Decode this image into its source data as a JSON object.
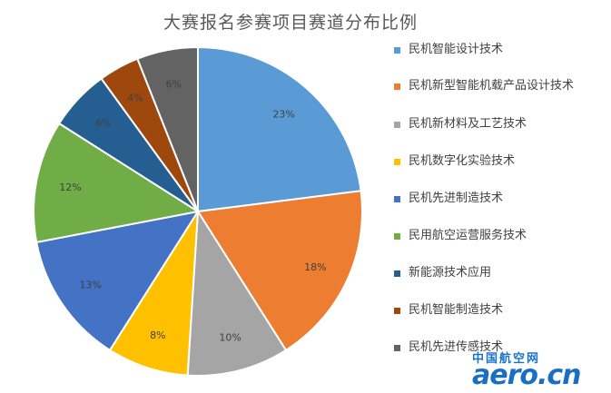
{
  "chart_data": {
    "type": "pie",
    "title": "大赛报名参赛项目赛道分布比例",
    "legend_position": "right",
    "slices": [
      {
        "name": "民机智能设计技术",
        "value": 23,
        "label": "23%",
        "color": "#5b9bd5"
      },
      {
        "name": "民机新型智能机载产品设计技术",
        "value": 18,
        "label": "18%",
        "color": "#ed7d31"
      },
      {
        "name": "民机新材料及工艺技术",
        "value": 10,
        "label": "10%",
        "color": "#a5a5a5"
      },
      {
        "name": "民机数字化实验技术",
        "value": 8,
        "label": "8%",
        "color": "#ffc000"
      },
      {
        "name": "民机先进制造技术",
        "value": 13,
        "label": "13%",
        "color": "#4472c4"
      },
      {
        "name": "民用航空运营服务技术",
        "value": 12,
        "label": "12%",
        "color": "#70ad47"
      },
      {
        "name": "新能源技术应用",
        "value": 6,
        "label": "6%",
        "color": "#255e91"
      },
      {
        "name": "民机智能制造技术",
        "value": 4,
        "label": "4%",
        "color": "#9e480e"
      },
      {
        "name": "民机先进传感技术",
        "value": 6,
        "label": "6%",
        "color": "#636363"
      }
    ]
  },
  "watermark": {
    "cn": "中国航空网",
    "en": "aero.cn"
  }
}
